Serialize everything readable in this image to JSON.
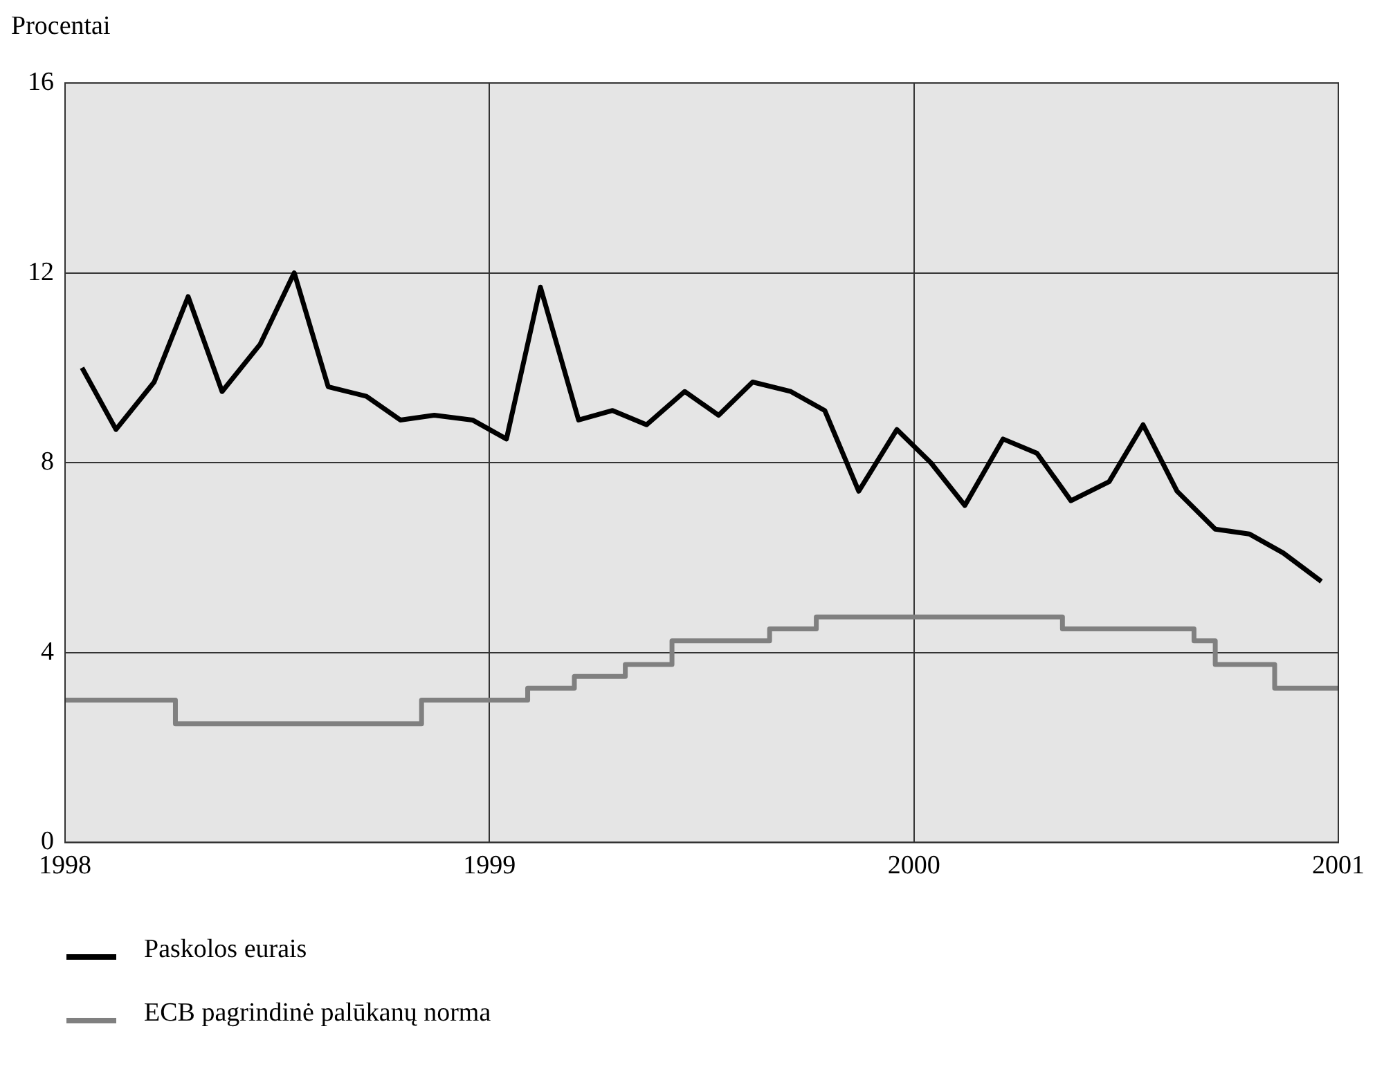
{
  "chart_data": {
    "type": "line",
    "ylabel": "Procentai",
    "xlim": [
      1998,
      2001
    ],
    "xticks": [
      1998,
      1999,
      2000,
      2001
    ],
    "ylim": [
      0,
      16
    ],
    "yticks": [
      0,
      4,
      8,
      12,
      16
    ],
    "grid": true,
    "legend": "bottom",
    "marker": "none",
    "series": [
      {
        "name": "Paskolos eurais",
        "color": "#000000",
        "x": [
          1998.04,
          1998.12,
          1998.21,
          1998.29,
          1998.37,
          1998.46,
          1998.54,
          1998.62,
          1998.71,
          1998.79,
          1998.87,
          1998.96,
          1999.04,
          1999.12,
          1999.21,
          1999.29,
          1999.37,
          1999.46,
          1999.54,
          1999.62,
          1999.71,
          1999.79,
          1999.87,
          1999.96,
          2000.04,
          2000.12,
          2000.21,
          2000.29,
          2000.37,
          2000.46,
          2000.54,
          2000.62,
          2000.71,
          2000.79,
          2000.87,
          2000.96
        ],
        "values": [
          10.0,
          8.7,
          9.7,
          11.5,
          9.5,
          10.5,
          12.0,
          9.6,
          9.4,
          8.9,
          9.0,
          8.9,
          8.5,
          11.7,
          8.9,
          9.1,
          8.8,
          9.5,
          9.0,
          9.7,
          9.5,
          9.1,
          7.4,
          8.7,
          8.0,
          7.1,
          8.5,
          8.2,
          7.2,
          7.6,
          8.8,
          7.4,
          6.6,
          6.5,
          6.1,
          5.5
        ]
      },
      {
        "name": "ECB pagrindinė palūkanų norma",
        "color": "#808080",
        "type": "step",
        "x": [
          1998,
          1998.26,
          1998.84,
          1999.09,
          1999.2,
          1999.32,
          1999.43,
          1999.66,
          1999.77,
          2000.35,
          2000.66,
          2000.71,
          2000.85,
          2001
        ],
        "values": [
          3.0,
          2.5,
          3.0,
          3.25,
          3.5,
          3.75,
          4.25,
          4.5,
          4.75,
          4.5,
          4.25,
          3.75,
          3.25,
          3.25
        ]
      }
    ]
  }
}
